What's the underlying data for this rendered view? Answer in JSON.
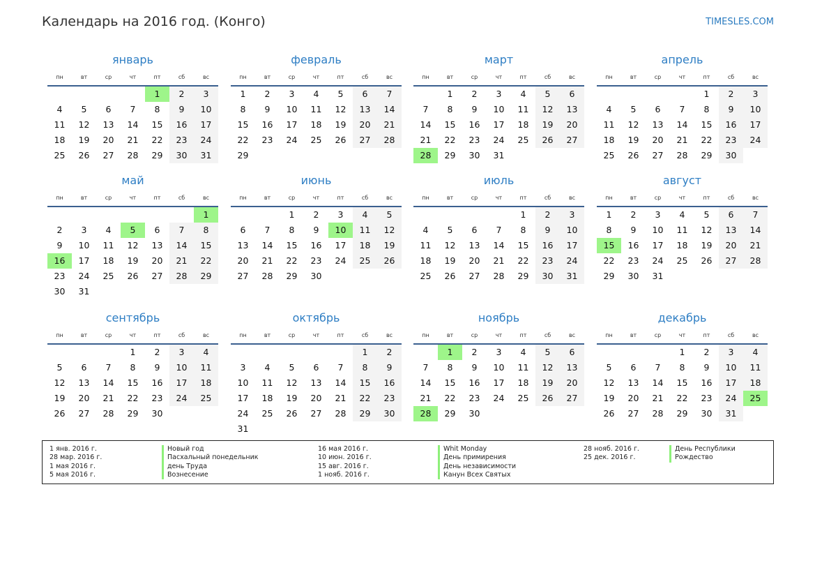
{
  "header": {
    "title": "Календарь на 2016 год. (Конго)",
    "brand": "TIMESLES.COM"
  },
  "weekdays": [
    "пн",
    "вт",
    "ср",
    "чт",
    "пт",
    "сб",
    "вс"
  ],
  "months": [
    {
      "name": "январь",
      "start": 4,
      "days": 31,
      "holidays": [
        1
      ]
    },
    {
      "name": "февраль",
      "start": 0,
      "days": 29,
      "holidays": []
    },
    {
      "name": "март",
      "start": 1,
      "days": 31,
      "holidays": [
        28
      ]
    },
    {
      "name": "апрель",
      "start": 4,
      "days": 30,
      "holidays": []
    },
    {
      "name": "май",
      "start": 6,
      "days": 31,
      "holidays": [
        1,
        5,
        16
      ]
    },
    {
      "name": "июнь",
      "start": 2,
      "days": 30,
      "holidays": [
        10
      ]
    },
    {
      "name": "июль",
      "start": 4,
      "days": 31,
      "holidays": []
    },
    {
      "name": "август",
      "start": 0,
      "days": 31,
      "holidays": [
        15
      ]
    },
    {
      "name": "сентябрь",
      "start": 3,
      "days": 30,
      "holidays": []
    },
    {
      "name": "октябрь",
      "start": 5,
      "days": 31,
      "holidays": []
    },
    {
      "name": "ноябрь",
      "start": 1,
      "days": 30,
      "holidays": [
        1,
        28
      ]
    },
    {
      "name": "декабрь",
      "start": 3,
      "days": 31,
      "holidays": [
        25
      ]
    }
  ],
  "legend": [
    {
      "date": "1 янв. 2016 г.",
      "name": "Новый год"
    },
    {
      "date": "28 мар. 2016 г.",
      "name": "Пасхальный понедельник"
    },
    {
      "date": "1 мая 2016 г.",
      "name": "день Труда"
    },
    {
      "date": "5 мая 2016 г.",
      "name": "Вознесение"
    },
    {
      "date": "16 мая 2016 г.",
      "name": "Whit Monday"
    },
    {
      "date": "10 июн. 2016 г.",
      "name": "День примирения"
    },
    {
      "date": "15 авг. 2016 г.",
      "name": "День независимости"
    },
    {
      "date": "1 нояб. 2016 г.",
      "name": "Канун Всех Святых"
    },
    {
      "date": "28 нояб. 2016 г.",
      "name": "День Республики"
    },
    {
      "date": "25 дек. 2016 г.",
      "name": "Рождество"
    }
  ],
  "colors": {
    "holiday": "#9ef58a",
    "weekend": "#f3f3f3",
    "accent": "#2e7ec4"
  }
}
